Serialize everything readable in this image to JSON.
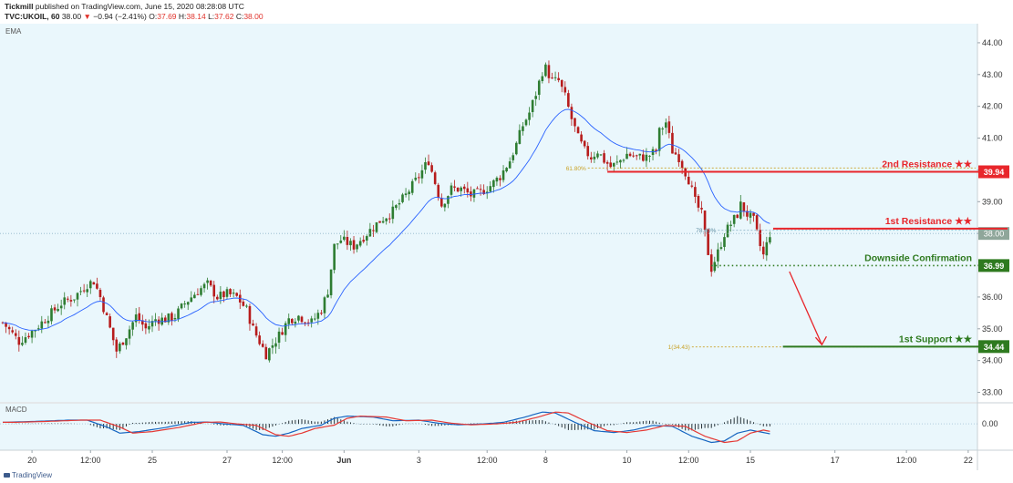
{
  "header": {
    "publisher": "Tickmill",
    "published_text": "published on TradingView.com, June 15, 2020 08:28:08 UTC",
    "symbol": "TVC:UKOIL, 60",
    "last": "38.00",
    "change_arrow": "▼",
    "change": "−0.94 (−2.41%)",
    "o_label": "O:",
    "o_value": "37.69",
    "h_label": "H:",
    "h_value": "38.14",
    "l_label": "L:",
    "l_value": "37.62",
    "c_label": "C:",
    "c_value": "38.00"
  },
  "footer": {
    "logo_text": "TradingView"
  },
  "colors": {
    "plot_bg": "#eaf7fc",
    "candle_up": "#2e7d32",
    "candle_down": "#b71c1c",
    "ema": "#2962ff",
    "resistance": "#e8262b",
    "support": "#2e7a1f",
    "fib": "#c9a227",
    "macd": "#1565c0",
    "signal": "#e53935"
  },
  "chart_data": {
    "type": "candlestick",
    "price_panel_label": "EMA",
    "macd_panel_label": "MACD",
    "y_axis": {
      "ylim": [
        32.7,
        44.6
      ],
      "ticks": [
        "33.00",
        "34.00",
        "35.00",
        "36.00",
        "37.00",
        "38.00",
        "39.00",
        "40.00",
        "41.00",
        "42.00",
        "43.00",
        "44.00"
      ]
    },
    "macd_axis": {
      "ylim": [
        -0.85,
        0.65
      ],
      "ticks": [
        "0.00"
      ]
    },
    "x_axis": {
      "n_bars": 300,
      "ticks": [
        {
          "label": "20",
          "bar": 9
        },
        {
          "label": "12:00",
          "bar": 27
        },
        {
          "label": "25",
          "bar": 46
        },
        {
          "label": "27",
          "bar": 69
        },
        {
          "label": "12:00",
          "bar": 86
        },
        {
          "label": "Jun",
          "bar": 105
        },
        {
          "label": "3",
          "bar": 128
        },
        {
          "label": "12:00",
          "bar": 149
        },
        {
          "label": "8",
          "bar": 167
        },
        {
          "label": "10",
          "bar": 192
        },
        {
          "label": "12:00",
          "bar": 211
        },
        {
          "label": "15",
          "bar": 230
        },
        {
          "label": "17",
          "bar": 256
        },
        {
          "label": "12:00",
          "bar": 278
        },
        {
          "label": "22",
          "bar": 297
        }
      ]
    },
    "price_path": [
      [
        0,
        35.2
      ],
      [
        5,
        34.6
      ],
      [
        10,
        35.0
      ],
      [
        14,
        35.4
      ],
      [
        18,
        35.8
      ],
      [
        22,
        36.0
      ],
      [
        26,
        36.4
      ],
      [
        28,
        36.5
      ],
      [
        30,
        36.0
      ],
      [
        33,
        35.0
      ],
      [
        35,
        34.3
      ],
      [
        38,
        34.8
      ],
      [
        41,
        35.4
      ],
      [
        44,
        35.0
      ],
      [
        47,
        35.3
      ],
      [
        50,
        35.3
      ],
      [
        53,
        35.4
      ],
      [
        56,
        35.8
      ],
      [
        60,
        36.2
      ],
      [
        63,
        36.4
      ],
      [
        66,
        36.0
      ],
      [
        69,
        36.1
      ],
      [
        72,
        36.0
      ],
      [
        75,
        35.6
      ],
      [
        77,
        35.0
      ],
      [
        79,
        34.6
      ],
      [
        81,
        34.2
      ],
      [
        83,
        34.5
      ],
      [
        85,
        34.8
      ],
      [
        88,
        35.3
      ],
      [
        91,
        35.4
      ],
      [
        95,
        35.2
      ],
      [
        98,
        35.6
      ],
      [
        100,
        36.2
      ],
      [
        102,
        37.6
      ],
      [
        104,
        37.8
      ],
      [
        108,
        37.6
      ],
      [
        112,
        38.0
      ],
      [
        116,
        38.4
      ],
      [
        120,
        38.7
      ],
      [
        124,
        39.2
      ],
      [
        128,
        39.8
      ],
      [
        131,
        40.3
      ],
      [
        133,
        39.6
      ],
      [
        135,
        38.9
      ],
      [
        138,
        39.4
      ],
      [
        141,
        39.4
      ],
      [
        144,
        39.2
      ],
      [
        147,
        39.3
      ],
      [
        150,
        39.5
      ],
      [
        153,
        39.8
      ],
      [
        156,
        40.3
      ],
      [
        158,
        40.8
      ],
      [
        160,
        41.4
      ],
      [
        162,
        41.8
      ],
      [
        164,
        42.4
      ],
      [
        166,
        43.1
      ],
      [
        167,
        43.2
      ],
      [
        169,
        42.8
      ],
      [
        171,
        42.8
      ],
      [
        173,
        42.3
      ],
      [
        175,
        41.6
      ],
      [
        177,
        41.0
      ],
      [
        179,
        40.6
      ],
      [
        181,
        40.4
      ],
      [
        183,
        40.6
      ],
      [
        185,
        40.3
      ],
      [
        187,
        40.1
      ],
      [
        189,
        40.2
      ],
      [
        192,
        40.5
      ],
      [
        195,
        40.4
      ],
      [
        198,
        40.4
      ],
      [
        201,
        40.6
      ],
      [
        202,
        41.2
      ],
      [
        204,
        41.5
      ],
      [
        206,
        40.6
      ],
      [
        208,
        40.4
      ],
      [
        211,
        39.7
      ],
      [
        213,
        39.0
      ],
      [
        215,
        38.6
      ],
      [
        217,
        37.4
      ],
      [
        218,
        36.9
      ],
      [
        220,
        37.4
      ],
      [
        222,
        38.0
      ],
      [
        224,
        38.3
      ],
      [
        226,
        38.6
      ],
      [
        227,
        38.9
      ],
      [
        229,
        38.6
      ],
      [
        231,
        38.4
      ],
      [
        233,
        37.6
      ],
      [
        234,
        37.3
      ],
      [
        236,
        38.0
      ]
    ],
    "macd_path": [
      [
        0,
        0.05
      ],
      [
        10,
        0.08
      ],
      [
        20,
        0.12
      ],
      [
        26,
        0.12
      ],
      [
        32,
        -0.1
      ],
      [
        36,
        -0.3
      ],
      [
        42,
        -0.25
      ],
      [
        50,
        -0.12
      ],
      [
        58,
        0.05
      ],
      [
        63,
        0.06
      ],
      [
        68,
        0.0
      ],
      [
        74,
        -0.05
      ],
      [
        80,
        -0.35
      ],
      [
        84,
        -0.4
      ],
      [
        88,
        -0.3
      ],
      [
        92,
        -0.15
      ],
      [
        98,
        -0.04
      ],
      [
        102,
        0.18
      ],
      [
        106,
        0.25
      ],
      [
        114,
        0.22
      ],
      [
        120,
        0.1
      ],
      [
        128,
        0.12
      ],
      [
        134,
        0.02
      ],
      [
        140,
        -0.03
      ],
      [
        148,
        0.0
      ],
      [
        154,
        0.05
      ],
      [
        160,
        0.2
      ],
      [
        166,
        0.38
      ],
      [
        170,
        0.35
      ],
      [
        176,
        0.05
      ],
      [
        182,
        -0.22
      ],
      [
        188,
        -0.28
      ],
      [
        194,
        -0.2
      ],
      [
        200,
        -0.05
      ],
      [
        206,
        -0.08
      ],
      [
        212,
        -0.4
      ],
      [
        218,
        -0.6
      ],
      [
        222,
        -0.55
      ],
      [
        226,
        -0.3
      ],
      [
        230,
        -0.2
      ],
      [
        236,
        -0.32
      ]
    ],
    "signal_lag": 4,
    "levels": [
      {
        "name": "2nd Resistance ★★",
        "value": 39.94,
        "label_value": "39.94",
        "color": "#e8262b",
        "style": "solid",
        "from_bar": 186
      },
      {
        "name": "1st Resistance ★★",
        "value": 38.15,
        "label_value": "",
        "color": "#e8262b",
        "style": "solid",
        "from_bar": 237
      },
      {
        "name": "Downside Confirmation",
        "value": 36.99,
        "label_value": "36.99",
        "color": "#2e7a1f",
        "style": "dotted",
        "from_bar": 218
      },
      {
        "name": "1st Support ★★",
        "value": 34.44,
        "label_value": "34.44",
        "color": "#2e7a1f",
        "style": "solid",
        "from_bar": 240
      }
    ],
    "current_price": {
      "value": 38.0,
      "label": "38.00"
    },
    "fib_levels": [
      {
        "label": "61.80%",
        "value": 40.06,
        "from_bar": 180
      },
      {
        "label": "78.60%",
        "value": 38.1,
        "from_bar": 220
      },
      {
        "label": "1(34.43)",
        "value": 34.43,
        "from_bar": 212
      }
    ],
    "arrow": {
      "from_bar": 242,
      "from_value": 36.8,
      "to_bar": 252,
      "to_value": 34.5
    }
  }
}
